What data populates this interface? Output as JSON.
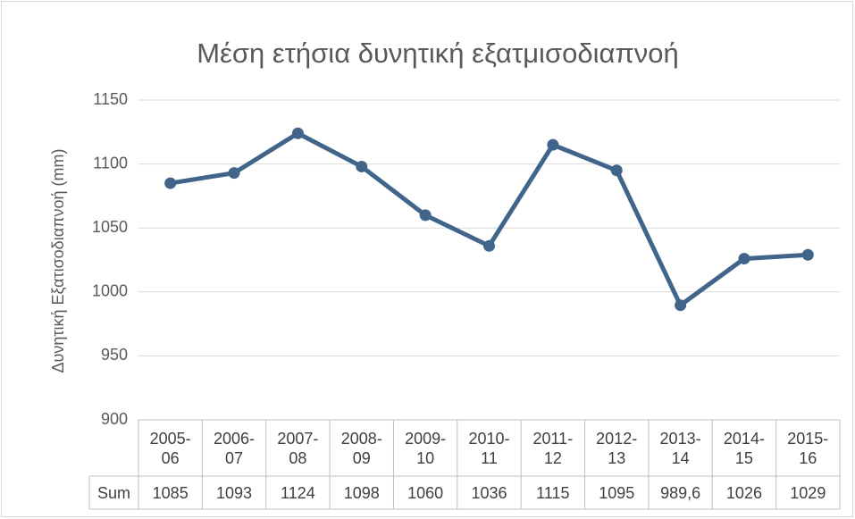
{
  "chart_data": {
    "type": "line",
    "title": "Μέση ετήσια δυνητική εξατμισοδιαπνοή",
    "y_label": "Δυνητική Εξατισοδιαπνοή (mm)",
    "categories": [
      "2005-06",
      "2006-07",
      "2007-08",
      "2008-09",
      "2009-10",
      "2010-11",
      "2011-12",
      "2012-13",
      "2013-14",
      "2014-15",
      "2015-16"
    ],
    "series": [
      {
        "name": "Sum",
        "color": "#41658a",
        "values": [
          1085,
          1093,
          1124,
          1098,
          1060,
          1036,
          1115,
          1095,
          989.6,
          1026,
          1029
        ],
        "value_labels": [
          "1085",
          "1093",
          "1124",
          "1098",
          "1060",
          "1036",
          "1115",
          "1095",
          "989,6",
          "1026",
          "1029"
        ]
      }
    ],
    "ylim": [
      900,
      1150
    ],
    "yticks": [
      900,
      950,
      1000,
      1050,
      1100,
      1150
    ],
    "grid": true
  }
}
